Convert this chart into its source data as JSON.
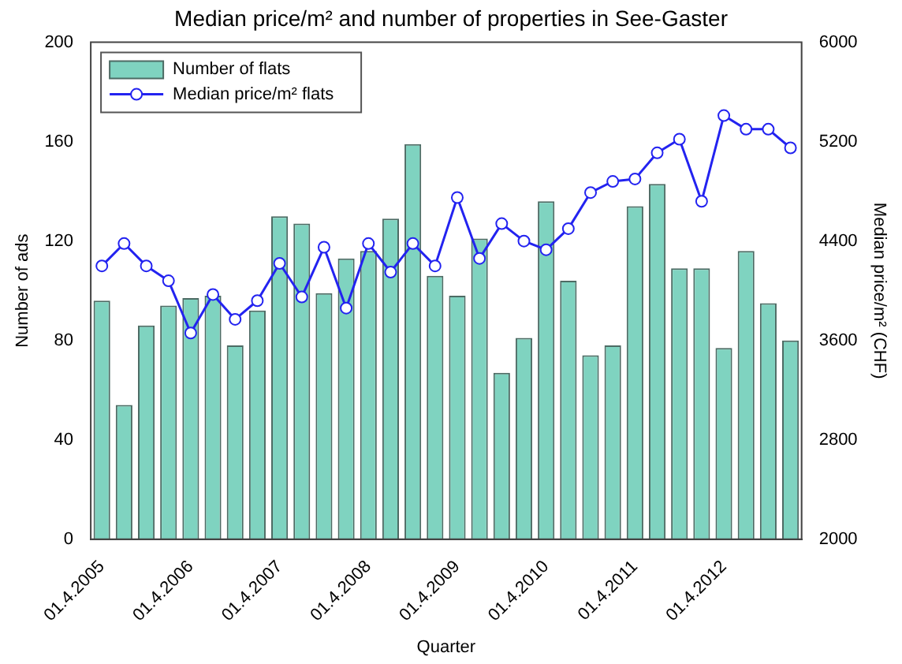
{
  "chart_data": {
    "type": "bar",
    "title": "Median price/m² and number of properties in See-Gaster",
    "xlabel": "Quarter",
    "ylabel": "Number of ads",
    "y2label": "Median price/m² (CHF)",
    "categories": [
      "01.4.2005",
      null,
      null,
      null,
      "01.4.2006",
      null,
      null,
      null,
      "01.4.2007",
      null,
      null,
      null,
      "01.4.2008",
      null,
      null,
      null,
      "01.4.2009",
      null,
      null,
      null,
      "01.4.2010",
      null,
      null,
      null,
      "01.4.2011",
      null,
      null,
      null,
      "01.4.2012",
      null,
      null,
      null
    ],
    "series": [
      {
        "name": "Number of flats",
        "color": "#7fd3c0",
        "values": [
          96,
          54,
          86,
          94,
          97,
          98,
          78,
          92,
          130,
          127,
          99,
          113,
          116,
          129,
          159,
          106,
          98,
          121,
          67,
          81,
          136,
          104,
          74,
          78,
          134,
          143,
          109,
          109,
          77,
          116,
          95,
          80
        ]
      },
      {
        "name": "Median price/m² flats",
        "type": "line",
        "axis": "y2",
        "color": "#2323f0",
        "values": [
          4200,
          4380,
          4200,
          4080,
          3660,
          3970,
          3770,
          3920,
          4220,
          3950,
          4350,
          3860,
          4380,
          4150,
          4380,
          4200,
          4750,
          4260,
          4540,
          4400,
          4330,
          4500,
          4790,
          4880,
          4900,
          5110,
          5220,
          4720,
          5410,
          5300,
          5300,
          5150
        ]
      }
    ],
    "ylim": [
      0,
      200
    ],
    "yticks": [
      0,
      40,
      80,
      120,
      160,
      200
    ],
    "y2lim": [
      2000,
      6000
    ],
    "y2ticks": [
      2000,
      2800,
      3600,
      4400,
      5200,
      6000
    ],
    "grid": false,
    "legend": "top left",
    "marker": "circle",
    "line_style": "solid"
  }
}
